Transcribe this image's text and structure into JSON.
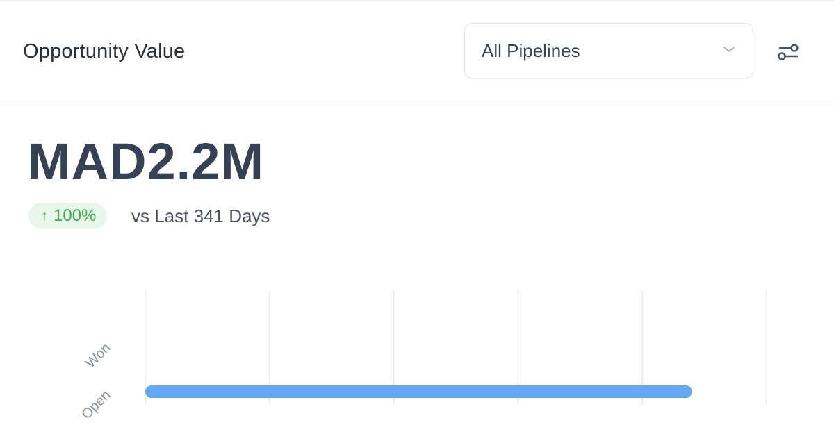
{
  "header": {
    "title": "Opportunity Value",
    "pipeline_select": {
      "value": "All Pipelines"
    },
    "filter_icon": "sliders-icon"
  },
  "summary": {
    "amount": "MAD2.2M",
    "change_arrow": "↑",
    "change_percent": "100%",
    "comparison": "vs Last 341 Days",
    "change_color": "#36b24a"
  },
  "chart_data": {
    "type": "bar",
    "orientation": "horizontal",
    "categories": [
      "Won",
      "Open"
    ],
    "series": [
      {
        "values": [
          0,
          2.2
        ]
      }
    ],
    "value_unit": "MAD M",
    "bar_color": "#64a8f5",
    "grid": true,
    "xlim": [
      0,
      2.5
    ],
    "x_gridlines": 5
  }
}
